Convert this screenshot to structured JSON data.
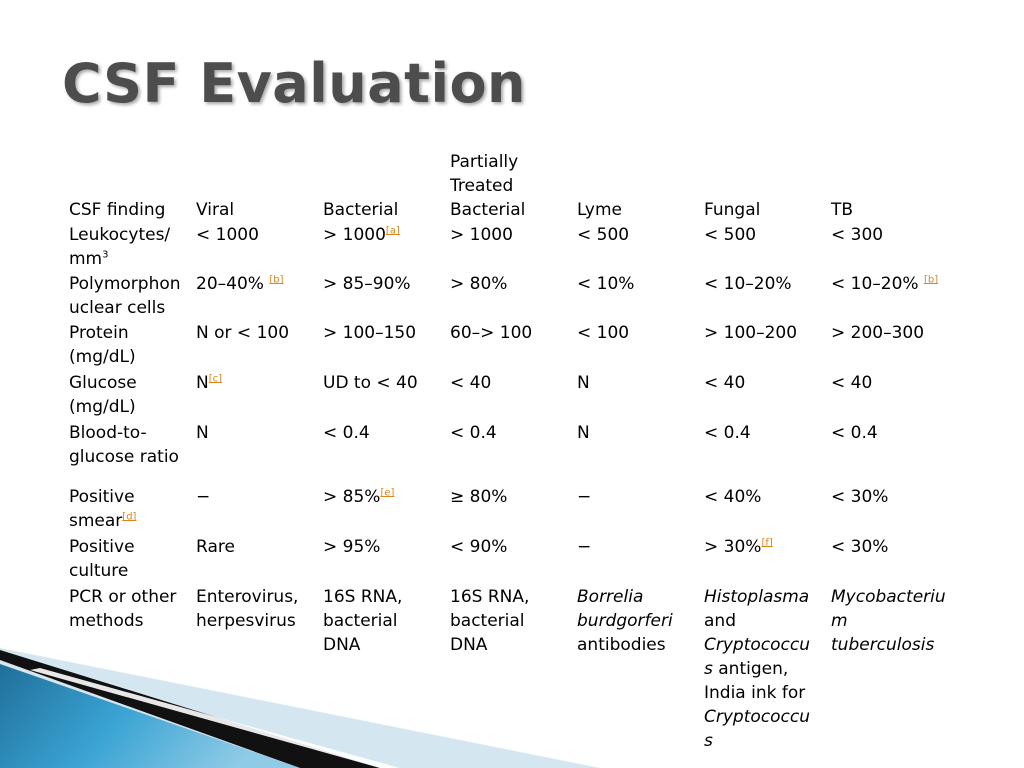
{
  "title": "CSF Evaluation",
  "table": {
    "headers": {
      "finding": "CSF finding",
      "viral": "Viral",
      "bacterial": "Bacterial",
      "partial_line1": "Partially",
      "partial_line2": "Treated",
      "partial_line3": "Bacterial",
      "lyme": "Lyme",
      "fungal": "Fungal",
      "tb": "TB"
    },
    "leukocytes": {
      "label_line1": "Leukocytes/",
      "label_line2": "mm",
      "label_sup": "3",
      "viral": "< 1000",
      "bacterial": "> 1000",
      "bacterial_ref": "[a]",
      "partial": "> 1000",
      "lyme": "< 500",
      "fungal": "< 500",
      "tb": "< 300"
    },
    "polymorphonuclear": {
      "label_line1": "Polymorphon",
      "label_line2": "uclear cells",
      "viral": "20–40%",
      "viral_ref": "[b]",
      "bacterial": "> 85–90%",
      "partial": "> 80%",
      "lyme": "< 10%",
      "fungal": "< 10–20%",
      "tb": "< 10–20%",
      "tb_ref": "[b]"
    },
    "protein": {
      "label_line1": "Protein",
      "label_line2": "(mg/dL)",
      "viral": "N or < 100",
      "bacterial": "> 100–150",
      "partial": "60–> 100",
      "lyme": "< 100",
      "fungal": "> 100–200",
      "tb": "> 200–300"
    },
    "glucose": {
      "label_line1": "Glucose",
      "label_line2": "(mg/dL)",
      "viral": "N",
      "viral_ref": "[c]",
      "bacterial": "UD to < 40",
      "partial": "< 40",
      "lyme": "N",
      "fungal": "< 40",
      "tb": "< 40"
    },
    "ratio": {
      "label_line1": "Blood-to-",
      "label_line2": "glucose ratio",
      "viral": "N",
      "bacterial": "< 0.4",
      "partial": "< 0.4",
      "lyme": "N",
      "fungal": "< 0.4",
      "tb": "< 0.4"
    },
    "smear": {
      "label_line1": "Positive",
      "label_line2": "smear",
      "label_ref": "[d]",
      "viral": "−",
      "bacterial": "> 85%",
      "bacterial_ref": "[e]",
      "partial": "≥ 80%",
      "lyme": "−",
      "fungal": "< 40%",
      "tb": "< 30%"
    },
    "culture": {
      "label_line1": "Positive",
      "label_line2": "culture",
      "viral": "Rare",
      "bacterial": "> 95%",
      "partial": "< 90%",
      "lyme": "−",
      "fungal": "> 30%",
      "fungal_ref": "[f]",
      "tb": "< 30%"
    },
    "pcr": {
      "label_line1": "PCR or other",
      "label_line2": "methods",
      "viral_line1": "Enterovirus,",
      "viral_line2": "herpesvirus",
      "bacterial_line1": "16S RNA,",
      "bacterial_line2": "bacterial",
      "bacterial_line3": "DNA",
      "partial_line1": "16S RNA,",
      "partial_line2": "bacterial",
      "partial_line3": "DNA",
      "lyme_line1": "Borrelia",
      "lyme_line2": "burdgorferi",
      "lyme_line3": "antibodies",
      "fungal_line1": "Histoplasma",
      "fungal_line2": "and",
      "fungal_line3": "Cryptococcu",
      "fungal_line4a": "s",
      "fungal_line4b": " antigen,",
      "fungal_line5": "India ink for",
      "fungal_line6": "Cryptococcu",
      "fungal_line7": "s",
      "tb_line1": "Mycobacteriu",
      "tb_line2": "m",
      "tb_line3": "tuberculosis"
    }
  },
  "colors": {
    "title": "#4d4d4d",
    "reference_link": "#d9861f",
    "decor_dark": "#1a1a1a",
    "decor_blue": "#2e8fbf",
    "decor_light": "#cfe3ee"
  }
}
